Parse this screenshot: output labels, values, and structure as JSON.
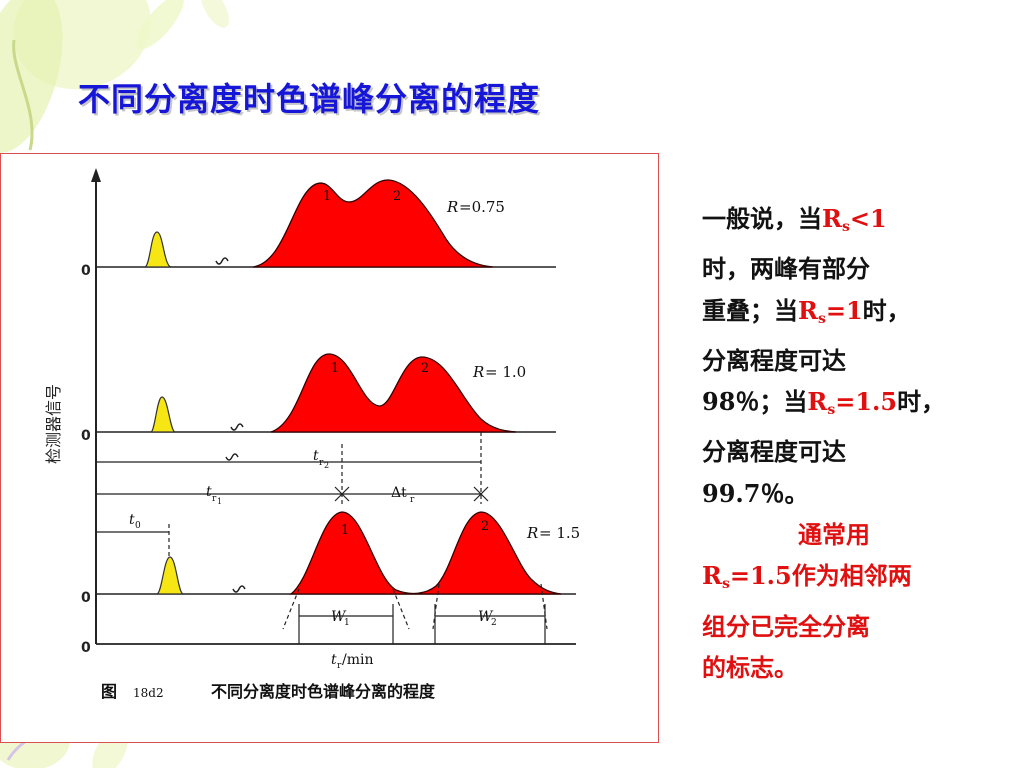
{
  "slide": {
    "title": "不同分离度时色谱峰分离的程度"
  },
  "figure": {
    "y_axis_label": "检测器信号",
    "x_axis_label": "t",
    "x_axis_label_sub": "r",
    "x_axis_unit": "/min",
    "zero_label": "0",
    "caption_prefix": "图",
    "caption_number": "18d2",
    "caption_text": "不同分离度时色谱峰分离的程度",
    "panels": [
      {
        "r_label": "R",
        "r_value": "=0.75",
        "peak1": "1",
        "peak2": "2"
      },
      {
        "r_label": "R",
        "r_value": "= 1.0",
        "peak1": "1",
        "peak2": "2"
      },
      {
        "r_label": "R",
        "r_value": "= 1.5",
        "peak1": "1",
        "peak2": "2"
      }
    ],
    "annotations": {
      "t0": "t",
      "t0_sub": "0",
      "tr1": "t",
      "tr1_sub": "r",
      "tr1_sub2": "1",
      "tr2": "t",
      "tr2_sub": "r",
      "tr2_sub2": "2",
      "delta_tr": "Δt",
      "delta_tr_sub": "r",
      "w1": "W",
      "w1_sub": "1",
      "w2": "W",
      "w2_sub": "2"
    },
    "colors": {
      "solvent_peak": "#f5e614",
      "peaks": "#ff0000",
      "border": "#d85050"
    }
  },
  "side_text": {
    "l1a": "一般说，当",
    "rs": "R",
    "s": "s",
    "l1b": "<1",
    "l2": "时，两峰有部分",
    "l3a": "重叠；当",
    "l3b": "=1",
    "l3c": "时，",
    "l4": "分离程度可达",
    "l5a": "98％；当",
    "l5b": "=1.5",
    "l5c": "时，",
    "l6": "分离程度可达",
    "l7": "99.7％。",
    "l8": "通常用",
    "l9b": "=1.5",
    "l9c": "作为相邻两",
    "l10": "组分已完全分离",
    "l11": "的标志。"
  }
}
